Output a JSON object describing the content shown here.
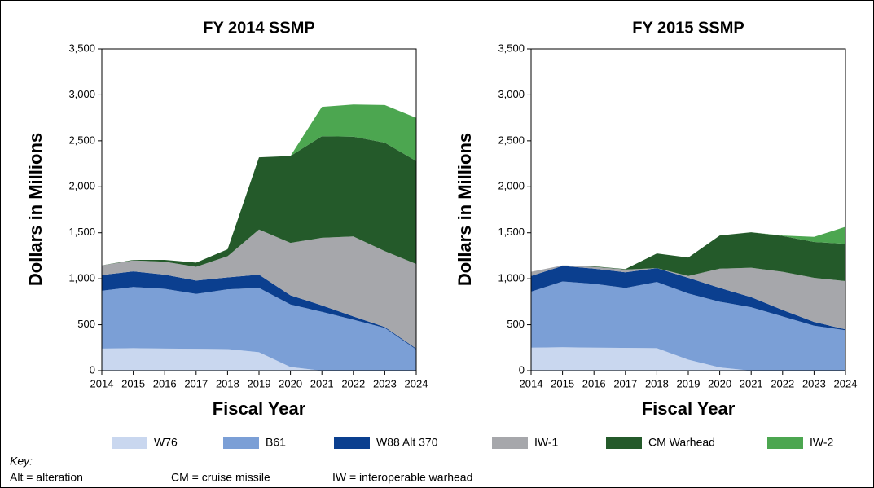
{
  "chart_data": [
    {
      "type": "stacked_area",
      "title": "FY 2014 SSMP",
      "xlabel": "Fiscal Year",
      "ylabel": "Dollars in Millions",
      "x": [
        2014,
        2015,
        2016,
        2017,
        2018,
        2019,
        2020,
        2021,
        2022,
        2023,
        2024
      ],
      "xlim": [
        2014,
        2024
      ],
      "xticks": [
        2014,
        2015,
        2016,
        2017,
        2018,
        2019,
        2020,
        2021,
        2022,
        2023,
        2024
      ],
      "ylim": [
        0,
        3500
      ],
      "yticks": [
        0,
        500,
        {
          "value": 1000,
          "label": "1,000"
        },
        {
          "value": 1500,
          "label": "1,500"
        },
        {
          "value": 2000,
          "label": "2,000"
        },
        {
          "value": 2500,
          "label": "2,500"
        },
        {
          "value": 3000,
          "label": "3,000"
        },
        {
          "value": 3500,
          "label": "3,500"
        }
      ],
      "series": [
        {
          "name": "W76",
          "color": "#c9d7ef",
          "values": [
            240,
            245,
            240,
            238,
            235,
            200,
            40,
            0,
            0,
            0,
            0
          ]
        },
        {
          "name": "B61",
          "color": "#7b9fd6",
          "values": [
            630,
            665,
            650,
            597,
            650,
            700,
            680,
            640,
            555,
            465,
            230
          ]
        },
        {
          "name": "W88 Alt 370",
          "color": "#0b3f8f",
          "values": [
            170,
            170,
            155,
            145,
            130,
            145,
            100,
            70,
            35,
            10,
            10
          ]
        },
        {
          "name": "IW-1",
          "color": "#a6a7ab",
          "values": [
            105,
            120,
            140,
            150,
            230,
            490,
            570,
            735,
            870,
            825,
            920
          ]
        },
        {
          "name": "CM Warhead",
          "color": "#245a2a",
          "values": [
            0,
            5,
            20,
            45,
            75,
            785,
            945,
            1105,
            1085,
            1180,
            1120
          ]
        },
        {
          "name": "IW-2",
          "color": "#4ca650",
          "values": [
            0,
            0,
            0,
            0,
            0,
            0,
            0,
            320,
            350,
            410,
            470
          ]
        }
      ]
    },
    {
      "type": "stacked_area",
      "title": "FY 2015 SSMP",
      "xlabel": "Fiscal Year",
      "ylabel": "Dollars in Millions",
      "x": [
        2014,
        2015,
        2016,
        2017,
        2018,
        2019,
        2020,
        2021,
        2022,
        2023,
        2024
      ],
      "xlim": [
        2014,
        2024
      ],
      "xticks": [
        2014,
        2015,
        2016,
        2017,
        2018,
        2019,
        2020,
        2021,
        2022,
        2023,
        2024
      ],
      "ylim": [
        0,
        3500
      ],
      "yticks": [
        0,
        500,
        {
          "value": 1000,
          "label": "1,000"
        },
        {
          "value": 1500,
          "label": "1,500"
        },
        {
          "value": 2000,
          "label": "2,000"
        },
        {
          "value": 2500,
          "label": "2,500"
        },
        {
          "value": 3000,
          "label": "3,000"
        },
        {
          "value": 3500,
          "label": "3,500"
        }
      ],
      "series": [
        {
          "name": "W76",
          "color": "#c9d7ef",
          "values": [
            250,
            255,
            250,
            248,
            245,
            120,
            35,
            0,
            0,
            0,
            0
          ]
        },
        {
          "name": "B61",
          "color": "#7b9fd6",
          "values": [
            610,
            715,
            695,
            652,
            720,
            720,
            715,
            690,
            590,
            490,
            440
          ]
        },
        {
          "name": "W88 Alt 370",
          "color": "#0b3f8f",
          "values": [
            170,
            170,
            165,
            170,
            150,
            170,
            150,
            110,
            70,
            40,
            10
          ]
        },
        {
          "name": "IW-1",
          "color": "#a6a7ab",
          "values": [
            45,
            5,
            20,
            30,
            0,
            20,
            210,
            320,
            415,
            480,
            525
          ]
        },
        {
          "name": "CM Warhead",
          "color": "#245a2a",
          "values": [
            0,
            0,
            5,
            5,
            160,
            200,
            360,
            385,
            390,
            390,
            405
          ]
        },
        {
          "name": "IW-2",
          "color": "#4ca650",
          "values": [
            0,
            0,
            0,
            0,
            0,
            0,
            0,
            0,
            5,
            55,
            185
          ]
        }
      ]
    }
  ],
  "key": {
    "title": "Key:",
    "items": [
      "Alt = alteration",
      "CM = cruise missile",
      "IW = interoperable warhead"
    ]
  }
}
